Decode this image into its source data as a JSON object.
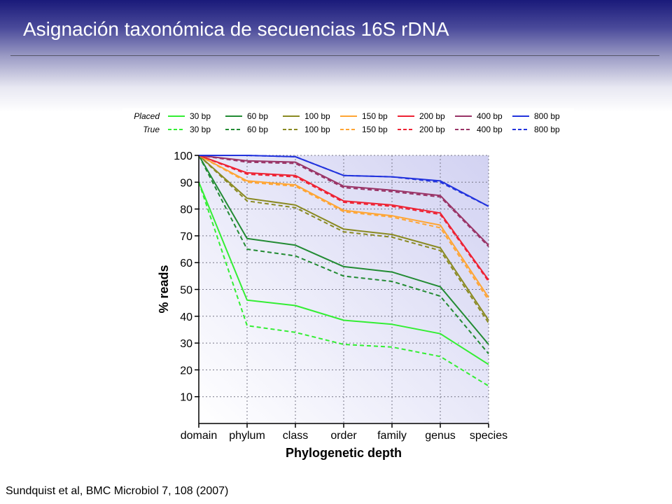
{
  "slide": {
    "title": "Asignación taxonómica de secuencias 16S rDNA",
    "citation": "Sundquist et al, BMC Microbiol 7, 108 (2007)"
  },
  "chart_data": {
    "type": "line",
    "title": "",
    "xlabel": "Phylogenetic depth",
    "ylabel": "% reads",
    "categories": [
      "domain",
      "phylum",
      "class",
      "order",
      "family",
      "genus",
      "species"
    ],
    "y_ticks": [
      10,
      20,
      30,
      40,
      50,
      60,
      70,
      80,
      90,
      100
    ],
    "ylim": [
      0,
      100
    ],
    "grid": true,
    "legend_position": "top",
    "legend_row_labels": [
      "Placed",
      "True"
    ],
    "series": [
      {
        "name": "30 bp",
        "kind": "placed",
        "color": "#33ee33",
        "values": [
          90,
          46,
          44,
          38.5,
          37,
          33.5,
          22
        ]
      },
      {
        "name": "30 bp",
        "kind": "true",
        "color": "#33ee33",
        "values": [
          90,
          36.5,
          34,
          29.5,
          28.5,
          25,
          14
        ]
      },
      {
        "name": "60 bp",
        "kind": "placed",
        "color": "#228b33",
        "values": [
          100,
          69,
          66.5,
          58.5,
          56.5,
          51,
          29.5
        ]
      },
      {
        "name": "60 bp",
        "kind": "true",
        "color": "#228b33",
        "values": [
          100,
          65,
          62.5,
          55,
          53,
          47.5,
          26
        ]
      },
      {
        "name": "100 bp",
        "kind": "placed",
        "color": "#8a8a22",
        "values": [
          100,
          84,
          81.5,
          72.5,
          70.5,
          65.5,
          38.5
        ]
      },
      {
        "name": "100 bp",
        "kind": "true",
        "color": "#8a8a22",
        "values": [
          100,
          83,
          80.5,
          71.5,
          69.5,
          64.5,
          37.5
        ]
      },
      {
        "name": "150 bp",
        "kind": "placed",
        "color": "#ffa533",
        "values": [
          100,
          90.5,
          89,
          79.5,
          77.5,
          74,
          47
        ]
      },
      {
        "name": "150 bp",
        "kind": "true",
        "color": "#ffa533",
        "values": [
          100,
          90,
          88.5,
          79,
          77,
          73,
          46
        ]
      },
      {
        "name": "200 bp",
        "kind": "placed",
        "color": "#ee2233",
        "values": [
          100,
          93.5,
          92.5,
          83,
          81.5,
          78.5,
          53.5
        ]
      },
      {
        "name": "200 bp",
        "kind": "true",
        "color": "#ee2233",
        "values": [
          100,
          93,
          92,
          82.5,
          81,
          78,
          53
        ]
      },
      {
        "name": "400 bp",
        "kind": "placed",
        "color": "#993366",
        "values": [
          100,
          98,
          97.5,
          88.5,
          87,
          85,
          66.5
        ]
      },
      {
        "name": "400 bp",
        "kind": "true",
        "color": "#993366",
        "values": [
          100,
          97.5,
          97,
          88,
          86.5,
          84.5,
          66
        ]
      },
      {
        "name": "800 bp",
        "kind": "placed",
        "color": "#2233dd",
        "values": [
          100,
          100,
          99.5,
          92.5,
          92,
          90.5,
          81
        ]
      },
      {
        "name": "800 bp",
        "kind": "true",
        "color": "#2233dd",
        "values": [
          100,
          100,
          99.5,
          92.5,
          92,
          90,
          81
        ]
      }
    ]
  }
}
